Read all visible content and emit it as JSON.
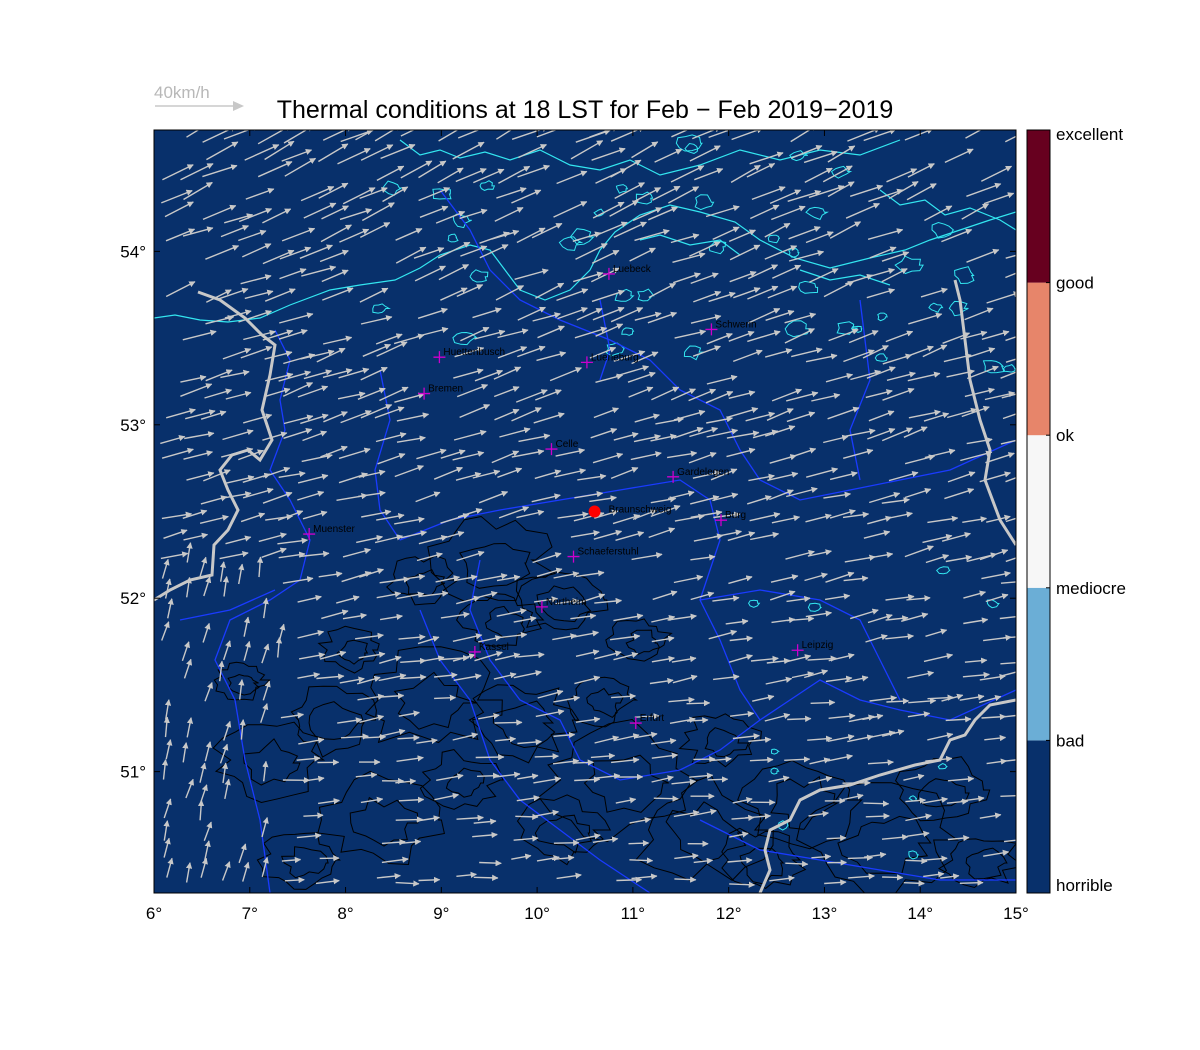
{
  "title": "Thermal conditions at 18 LST for Feb − Feb  2019−2019",
  "wind_scale": {
    "label": "40km/h",
    "speed_kmh": 40
  },
  "map": {
    "lon_range": [
      6,
      15
    ],
    "lat_range": [
      50.3,
      54.7
    ],
    "x_ticks": [
      {
        "value": 6,
        "label": "6°"
      },
      {
        "value": 7,
        "label": "7°"
      },
      {
        "value": 8,
        "label": "8°"
      },
      {
        "value": 9,
        "label": "9°"
      },
      {
        "value": 10,
        "label": "10°"
      },
      {
        "value": 11,
        "label": "11°"
      },
      {
        "value": 12,
        "label": "12°"
      },
      {
        "value": 13,
        "label": "13°"
      },
      {
        "value": 14,
        "label": "14°"
      },
      {
        "value": 15,
        "label": "15°"
      }
    ],
    "y_ticks": [
      {
        "value": 51,
        "label": "51°"
      },
      {
        "value": 52,
        "label": "52°"
      },
      {
        "value": 53,
        "label": "53°"
      },
      {
        "value": 54,
        "label": "54°"
      }
    ],
    "background_class": "horrible",
    "background_color": "#08306b",
    "cities": [
      {
        "name": "Luebeck",
        "lon": 10.75,
        "lat": 53.87
      },
      {
        "name": "Schwerin",
        "lon": 11.82,
        "lat": 53.55
      },
      {
        "name": "Huettenbusch",
        "lon": 8.98,
        "lat": 53.39
      },
      {
        "name": "Lueneburg",
        "lon": 10.52,
        "lat": 53.36
      },
      {
        "name": "Bremen",
        "lon": 8.82,
        "lat": 53.18
      },
      {
        "name": "Celle",
        "lon": 10.15,
        "lat": 52.86
      },
      {
        "name": "Gardelegen",
        "lon": 11.42,
        "lat": 52.7
      },
      {
        "name": "Braunschweig",
        "lon": 10.6,
        "lat": 52.5,
        "marker": "dot"
      },
      {
        "name": "Burg",
        "lon": 11.92,
        "lat": 52.45
      },
      {
        "name": "Muenster",
        "lon": 7.62,
        "lat": 52.37
      },
      {
        "name": "Schaeferstuhl",
        "lon": 10.38,
        "lat": 52.24
      },
      {
        "name": "Northeim",
        "lon": 10.05,
        "lat": 51.95
      },
      {
        "name": "Kassel",
        "lon": 9.35,
        "lat": 51.69
      },
      {
        "name": "Leipzig",
        "lon": 12.72,
        "lat": 51.7
      },
      {
        "name": "Erfurt",
        "lon": 11.03,
        "lat": 51.28
      }
    ]
  },
  "colorbar": {
    "classes": [
      {
        "label": "horrible",
        "color": "#08306b"
      },
      {
        "label": "bad",
        "color": "#6baed6"
      },
      {
        "label": "mediocre",
        "color": "#f7f7f7"
      },
      {
        "label": "ok",
        "color": "#e7856a"
      },
      {
        "label": "good",
        "color": "#67001f"
      }
    ],
    "tick_labels": [
      "horrible",
      "bad",
      "mediocre",
      "ok",
      "good",
      "excellent"
    ]
  },
  "colors": {
    "coast": "#33e6f0",
    "state_border": "#1a3bff",
    "country_border": "#c8c8c8",
    "contour": "#000000",
    "wind_arrow": "#c8c8c8",
    "city_marker": "#cc00cc",
    "highlight_marker": "#ff0000"
  }
}
